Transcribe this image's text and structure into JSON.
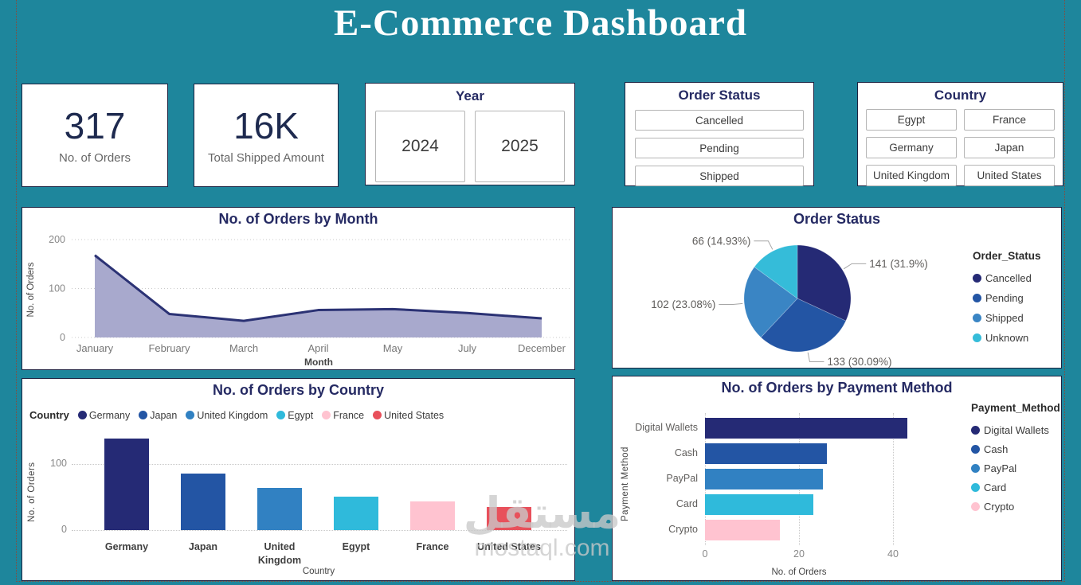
{
  "title": "E-Commerce Dashboard",
  "colors": {
    "background": "#1e869c",
    "panel_border": "#1b2240",
    "title_text": "#ffffff",
    "chart_title": "#252a63",
    "kpi_value": "#1e2a4f",
    "kpi_label": "#666666"
  },
  "kpis": [
    {
      "value": "317",
      "label": "No. of Orders"
    },
    {
      "value": "16K",
      "label": "Total Shipped Amount"
    }
  ],
  "slicers": {
    "year": {
      "title": "Year",
      "options": [
        "2024",
        "2025"
      ]
    },
    "order_status": {
      "title": "Order Status",
      "options": [
        "Cancelled",
        "Pending",
        "Shipped"
      ]
    },
    "country": {
      "title": "Country",
      "options": [
        "Egypt",
        "France",
        "Germany",
        "Japan",
        "United Kingdom",
        "United States"
      ]
    }
  },
  "chart_data": [
    {
      "type": "area",
      "title": "No. of Orders by Month",
      "categories": [
        "January",
        "February",
        "March",
        "April",
        "May",
        "July",
        "December"
      ],
      "values": [
        168,
        48,
        34,
        56,
        58,
        50,
        39
      ],
      "xlabel": "Month",
      "ylabel": "No. of Orders",
      "yticks": [
        0,
        100,
        200
      ],
      "ylim": [
        0,
        200
      ],
      "line_color": "#2b3274",
      "fill_color": "#a8a9cd",
      "grid": true
    },
    {
      "type": "pie",
      "title": "Order Status",
      "legend_title": "Order_Status",
      "legend_position": "right",
      "categories": [
        "Cancelled",
        "Pending",
        "Shipped",
        "Unknown"
      ],
      "values": [
        141,
        133,
        102,
        66
      ],
      "labels": [
        "141 (31.9%)",
        "133 (30.09%)",
        "102 (23.08%)",
        "66 (14.93%)"
      ],
      "colors": [
        "#252a75",
        "#2355a4",
        "#3a85c4",
        "#35bcd9"
      ]
    },
    {
      "type": "bar",
      "title": "No. of Orders by Country",
      "legend_title": "Country",
      "legend_position": "top",
      "categories": [
        "Germany",
        "Japan",
        "United Kingdom",
        "Egypt",
        "France",
        "United States"
      ],
      "values": [
        138,
        85,
        64,
        50,
        43,
        35
      ],
      "colors": [
        "#252a75",
        "#2355a4",
        "#3181c2",
        "#2fbadb",
        "#ffc3d0",
        "#e8505b"
      ],
      "xlabel": "Country",
      "ylabel": "No. of Orders",
      "yticks": [
        0,
        100
      ],
      "ylim": [
        0,
        145
      ],
      "grid": true
    },
    {
      "type": "hbar",
      "title": "No. of Orders by Payment Method",
      "legend_title": "Payment_Method",
      "legend_position": "right",
      "categories": [
        "Digital Wallets",
        "Cash",
        "PayPal",
        "Card",
        "Crypto"
      ],
      "values": [
        43,
        26,
        25,
        23,
        16
      ],
      "colors": [
        "#252a75",
        "#2355a4",
        "#3181c2",
        "#2fbadb",
        "#ffc3d0"
      ],
      "xlabel": "No. of Orders",
      "ylabel": "Payment Method",
      "xticks": [
        0,
        20,
        40
      ],
      "xlim": [
        0,
        48
      ],
      "grid": true
    }
  ],
  "watermark": {
    "arabic": "مستقل",
    "latin": "mostaql.com"
  }
}
